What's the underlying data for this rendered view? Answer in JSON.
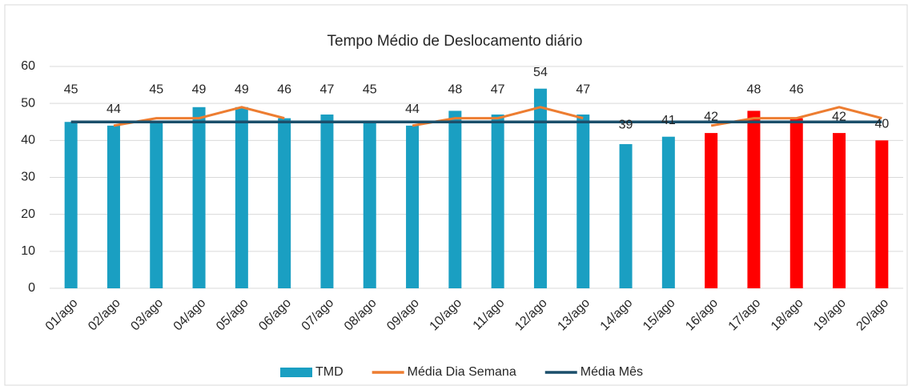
{
  "chart_data": {
    "type": "bar_line",
    "title": "Tempo Médio de Deslocamento diário",
    "categories": [
      "01/ago",
      "02/ago",
      "03/ago",
      "04/ago",
      "05/ago",
      "06/ago",
      "07/ago",
      "08/ago",
      "09/ago",
      "10/ago",
      "11/ago",
      "12/ago",
      "13/ago",
      "14/ago",
      "15/ago",
      "16/ago",
      "17/ago",
      "18/ago",
      "19/ago",
      "20/ago"
    ],
    "series": [
      {
        "name": "TMD",
        "type": "bar",
        "color": "#1a9fc2",
        "colors": [
          "#1a9fc2",
          "#1a9fc2",
          "#1a9fc2",
          "#1a9fc2",
          "#1a9fc2",
          "#1a9fc2",
          "#1a9fc2",
          "#1a9fc2",
          "#1a9fc2",
          "#1a9fc2",
          "#1a9fc2",
          "#1a9fc2",
          "#1a9fc2",
          "#1a9fc2",
          "#1a9fc2",
          "#ff0000",
          "#ff0000",
          "#ff0000",
          "#ff0000",
          "#ff0000"
        ],
        "values": [
          45,
          44,
          45,
          49,
          49,
          46,
          47,
          45,
          44,
          48,
          47,
          54,
          47,
          39,
          41,
          42,
          48,
          46,
          42,
          40
        ]
      },
      {
        "name": "Média Dia Semana",
        "type": "line",
        "color": "#ed7d31",
        "values": [
          null,
          44,
          46,
          46,
          49,
          46,
          null,
          null,
          44,
          46,
          46,
          49,
          46,
          null,
          null,
          44,
          46,
          46,
          49,
          46
        ]
      },
      {
        "name": "Média Mês",
        "type": "line",
        "color": "#1b4f6b",
        "values": [
          45,
          45,
          45,
          45,
          45,
          45,
          45,
          45,
          45,
          45,
          45,
          45,
          45,
          45,
          45,
          45,
          45,
          45,
          45,
          45
        ]
      }
    ],
    "ylim": [
      0,
      60
    ],
    "yticks": [
      0,
      10,
      20,
      30,
      40,
      50,
      60
    ],
    "grid": true,
    "legend": "bottom"
  }
}
